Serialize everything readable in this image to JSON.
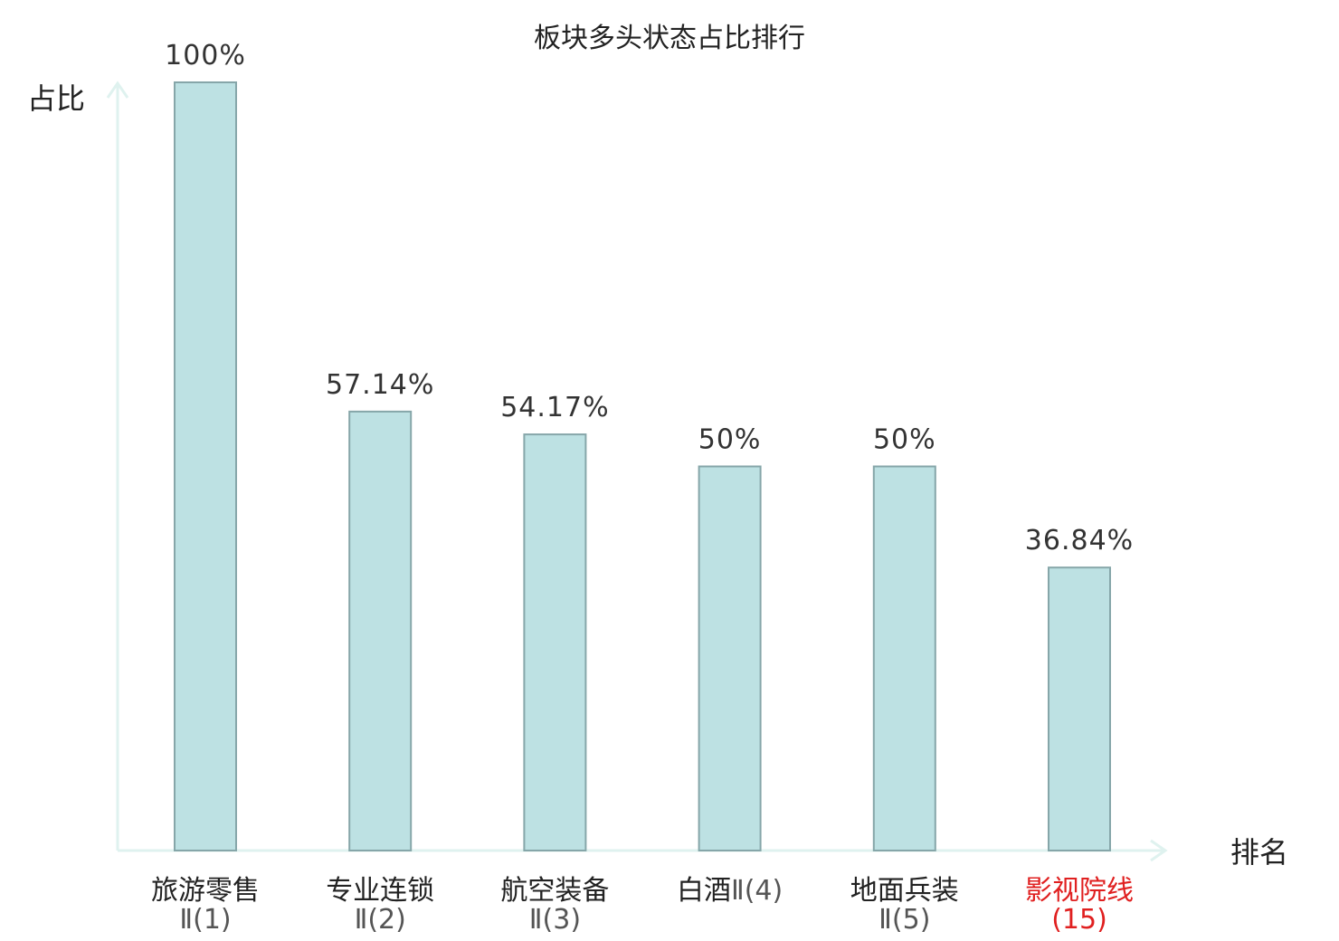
{
  "chart_data": {
    "type": "bar",
    "title": "板块多头状态占比排行",
    "ylabel": "占比",
    "xlabel": "排名",
    "ylim": [
      0,
      100
    ],
    "grid": false,
    "categories": [
      {
        "name": "旅游零售",
        "rank": "Ⅱ(1)",
        "highlight": false
      },
      {
        "name": "专业连锁",
        "rank": "Ⅱ(2)",
        "highlight": false
      },
      {
        "name": "航空装备",
        "rank": "Ⅱ(3)",
        "highlight": false
      },
      {
        "name": "白酒",
        "rank": "Ⅱ(4)",
        "highlight": false
      },
      {
        "name": "地面兵装",
        "rank": "Ⅱ(5)",
        "highlight": false
      },
      {
        "name": "影视院线",
        "rank": "(15)",
        "highlight": true
      }
    ],
    "values": [
      100,
      57.14,
      54.17,
      50,
      50,
      36.84
    ],
    "value_labels": [
      "100%",
      "57.14%",
      "54.17%",
      "50%",
      "50%",
      "36.84%"
    ]
  },
  "colors": {
    "bar_fill": "#bde1e3",
    "bar_stroke": "#86a6a9",
    "axis": "#dff2ef",
    "text": "#222222",
    "value_text": "#333333",
    "rank_text": "#555555",
    "highlight": "#e02020"
  }
}
